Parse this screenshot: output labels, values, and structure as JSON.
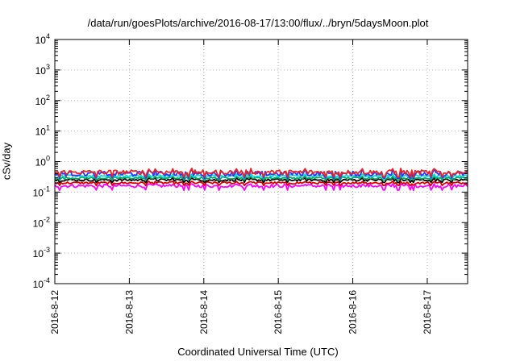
{
  "chart_data": {
    "type": "line",
    "title": "/data/run/goesPlots/archive/2016-08-17/13:00/flux/../bryn/5daysMoon.plot",
    "xlabel": "Coordinated Universal Time (UTC)",
    "ylabel": "cSv/day",
    "yscale": "log",
    "ylim": [
      0.0001,
      10000
    ],
    "y_ticks": [
      {
        "base": "10",
        "exp": "-4"
      },
      {
        "base": "10",
        "exp": "-3"
      },
      {
        "base": "10",
        "exp": "-2"
      },
      {
        "base": "10",
        "exp": "-1"
      },
      {
        "base": "10",
        "exp": "0"
      },
      {
        "base": "10",
        "exp": "1"
      },
      {
        "base": "10",
        "exp": "2"
      },
      {
        "base": "10",
        "exp": "3"
      },
      {
        "base": "10",
        "exp": "4"
      }
    ],
    "xlim": [
      "2016-08-12",
      "2016-08-17 13:00"
    ],
    "x_ticks": [
      "2016-8-12",
      "2016-8-13",
      "2016-8-14",
      "2016-8-15",
      "2016-8-16",
      "2016-8-17"
    ],
    "grid": true,
    "series": [
      {
        "color": "#ff00ff",
        "x": [
          "2016-08-12",
          "2016-08-17 13:00"
        ],
        "typical": 0.16,
        "min": 0.11,
        "max": 0.19
      },
      {
        "color": "#dd0000",
        "x": [
          "2016-08-12",
          "2016-08-17 13:00"
        ],
        "typical": 0.2,
        "min": 0.16,
        "max": 0.23
      },
      {
        "color": "#000000",
        "x": [
          "2016-08-12",
          "2016-08-17 13:00"
        ],
        "typical": 0.25,
        "min": 0.2,
        "max": 0.3
      },
      {
        "color": "#00aa66",
        "x": [
          "2016-08-12",
          "2016-08-17 13:00"
        ],
        "typical": 0.29,
        "min": 0.24,
        "max": 0.34
      },
      {
        "color": "#00dddd",
        "x": [
          "2016-08-12",
          "2016-08-17 13:00"
        ],
        "typical": 0.34,
        "min": 0.28,
        "max": 0.4
      },
      {
        "color": "#3333ff",
        "x": [
          "2016-08-12",
          "2016-08-17 13:00"
        ],
        "typical": 0.4,
        "min": 0.27,
        "max": 0.6
      },
      {
        "color": "#ee2222",
        "x": [
          "2016-08-12",
          "2016-08-17 13:00"
        ],
        "typical": 0.45,
        "min": 0.3,
        "max": 0.62
      }
    ]
  }
}
